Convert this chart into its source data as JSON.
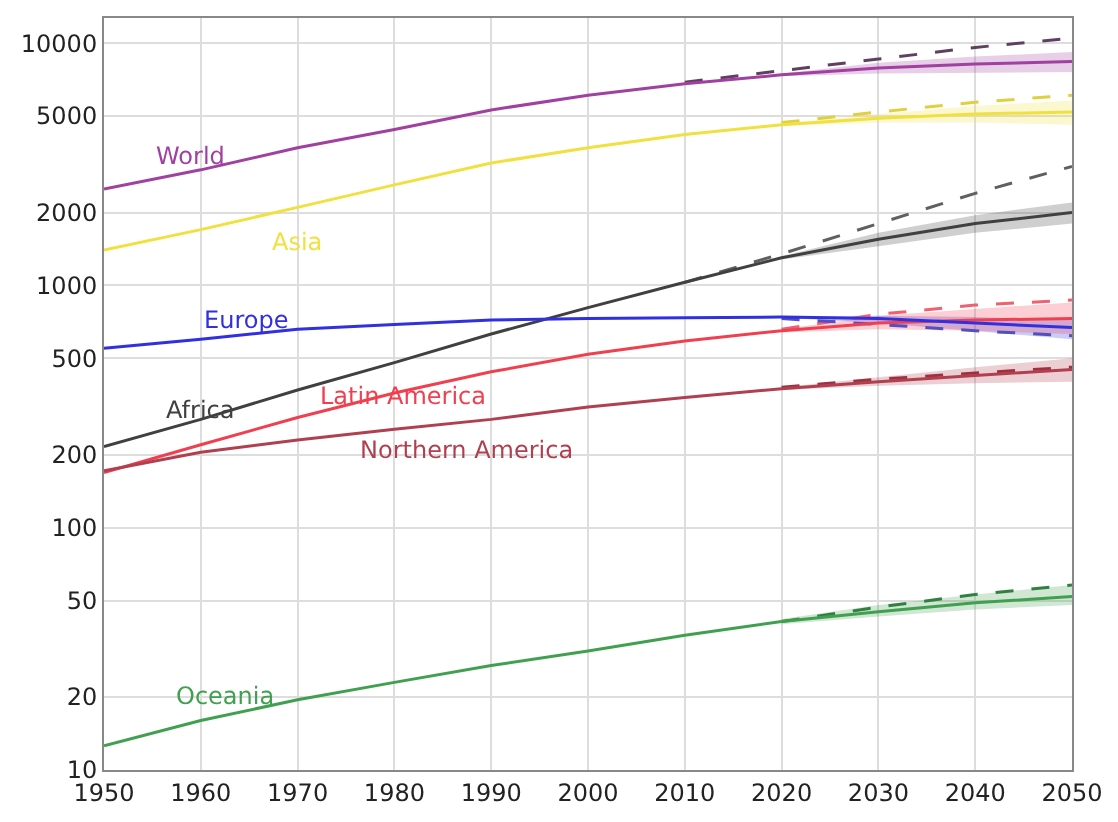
{
  "chart_data": {
    "type": "line",
    "log": true,
    "grid": true,
    "marker": "none",
    "x": [
      1950,
      1960,
      1970,
      1980,
      1990,
      2000,
      2010,
      2020,
      2030,
      2040,
      2050
    ],
    "xlim": [
      1950,
      2050
    ],
    "xticks": [
      1950,
      1960,
      1970,
      1980,
      1990,
      2000,
      2010,
      2020,
      2030,
      2040,
      2050
    ],
    "ylim": [
      10,
      12700
    ],
    "yticks": [
      10,
      20,
      50,
      100,
      200,
      500,
      1000,
      2000,
      5000,
      {
        "value": 10000,
        "label": "10000"
      }
    ],
    "series": [
      {
        "name": "World",
        "color": "#a040a0",
        "line_style": "solid",
        "values": [
          2500,
          3000,
          3700,
          4400,
          5300,
          6100,
          6800,
          7400,
          7900,
          8200,
          8400
        ],
        "lower": [
          null,
          null,
          null,
          null,
          null,
          null,
          null,
          7300,
          7500,
          7600,
          7600
        ],
        "upper": [
          null,
          null,
          null,
          null,
          null,
          null,
          null,
          7500,
          8300,
          8800,
          9200
        ]
      },
      {
        "name": "Asia",
        "color": "#f0e040",
        "line_style": "solid",
        "values": [
          1400,
          1700,
          2100,
          2600,
          3200,
          3700,
          4200,
          4600,
          4900,
          5100,
          5200
        ],
        "lower": [
          null,
          null,
          null,
          null,
          null,
          null,
          null,
          4550,
          4700,
          4700,
          4600
        ],
        "upper": [
          null,
          null,
          null,
          null,
          null,
          null,
          null,
          4650,
          5100,
          5500,
          5800
        ]
      },
      {
        "name": "Europe",
        "color": "#3030e0",
        "line_style": "solid",
        "values": [
          550,
          600,
          660,
          690,
          720,
          730,
          735,
          740,
          730,
          700,
          670
        ],
        "lower": [
          null,
          null,
          null,
          null,
          null,
          null,
          null,
          735,
          700,
          650,
          600
        ],
        "upper": [
          null,
          null,
          null,
          null,
          null,
          null,
          null,
          745,
          750,
          740,
          720
        ]
      },
      {
        "name": "Africa",
        "color": "#404040",
        "line_style": "solid",
        "values": [
          216,
          280,
          370,
          480,
          630,
          810,
          1030,
          1300,
          1550,
          1800,
          2000
        ],
        "lower": [
          null,
          null,
          null,
          null,
          null,
          null,
          null,
          1280,
          1450,
          1650,
          1800
        ],
        "upper": [
          null,
          null,
          null,
          null,
          null,
          null,
          null,
          1320,
          1650,
          1950,
          2200
        ]
      },
      {
        "name": "Latin America",
        "color": "#f04050",
        "line_style": "solid",
        "values": [
          169,
          220,
          285,
          360,
          440,
          520,
          590,
          650,
          700,
          720,
          730
        ],
        "lower": [
          null,
          null,
          null,
          null,
          null,
          null,
          null,
          640,
          660,
          650,
          630
        ],
        "upper": [
          null,
          null,
          null,
          null,
          null,
          null,
          null,
          660,
          750,
          800,
          850
        ]
      },
      {
        "name": "Northern America",
        "color": "#b04050",
        "line_style": "solid",
        "values": [
          172,
          205,
          230,
          255,
          280,
          315,
          345,
          375,
          400,
          425,
          450
        ],
        "lower": [
          null,
          null,
          null,
          null,
          null,
          null,
          null,
          370,
          385,
          395,
          400
        ],
        "upper": [
          null,
          null,
          null,
          null,
          null,
          null,
          null,
          380,
          420,
          460,
          500
        ]
      },
      {
        "name": "Oceania",
        "color": "#40a050",
        "line_style": "solid",
        "values": [
          12.6,
          16,
          19.5,
          23,
          27,
          31,
          36,
          41,
          45,
          49,
          52
        ],
        "lower": [
          null,
          null,
          null,
          null,
          null,
          null,
          null,
          40,
          43,
          46,
          48
        ],
        "upper": [
          null,
          null,
          null,
          null,
          null,
          null,
          null,
          42,
          48,
          53,
          58
        ]
      },
      {
        "color": "#604060",
        "line_style": "dashed",
        "x": [
          2010,
          2020,
          2030,
          2040,
          2050
        ],
        "values": [
          6900,
          7700,
          8600,
          9600,
          10500
        ]
      },
      {
        "color": "#e0d040",
        "line_style": "dashed",
        "x": [
          2020,
          2030,
          2040,
          2050
        ],
        "values": [
          4700,
          5200,
          5700,
          6100
        ]
      },
      {
        "color": "#606060",
        "line_style": "dashed",
        "x": [
          2010,
          2020,
          2030,
          2040,
          2050
        ],
        "values": [
          1030,
          1350,
          1800,
          2400,
          3100
        ]
      },
      {
        "color": "#f06070",
        "line_style": "dashed",
        "x": [
          2020,
          2030,
          2040,
          2050
        ],
        "values": [
          660,
          760,
          830,
          870
        ]
      },
      {
        "color": "#5050c0",
        "line_style": "dashed",
        "x": [
          2020,
          2030,
          2040,
          2050
        ],
        "values": [
          730,
          690,
          650,
          620
        ]
      },
      {
        "color": "#a03040",
        "line_style": "dashed",
        "x": [
          2020,
          2030,
          2040,
          2050
        ],
        "values": [
          380,
          410,
          435,
          460
        ]
      },
      {
        "color": "#308040",
        "line_style": "dashed",
        "x": [
          2020,
          2030,
          2040,
          2050
        ],
        "values": [
          41,
          47,
          53,
          58
        ]
      }
    ]
  }
}
